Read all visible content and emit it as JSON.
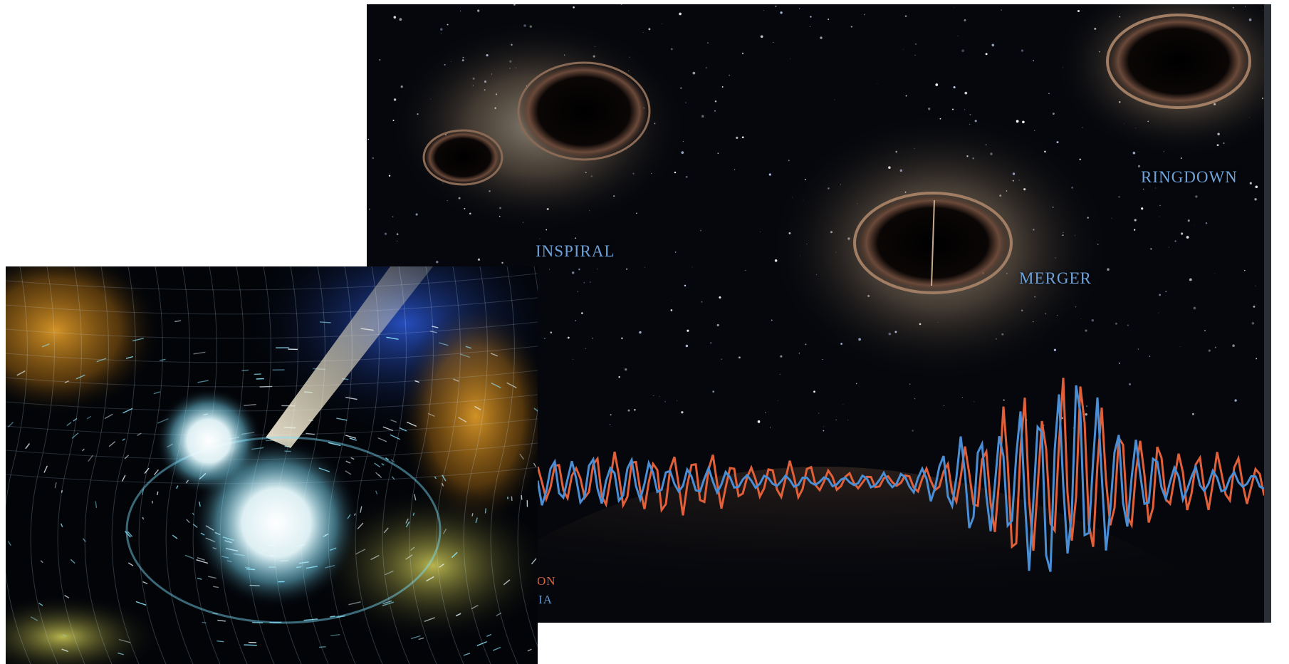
{
  "black_hole_panel": {
    "labels": {
      "inspiral": "INSPIRAL",
      "merger": "MERGER",
      "ringdown": "RINGDOWN"
    },
    "legend_fragments": [
      "ON",
      "IA"
    ],
    "colors": {
      "label_blue": "#6fa3dc",
      "wave_orange": "#e1603a",
      "wave_blue": "#4a8fd6",
      "space": "#05070c"
    }
  },
  "neutron_star_panel": {
    "colors": {
      "glow_white": "#ffffff",
      "cyan": "#7fe3ff",
      "gold": "#d9a12a",
      "blue": "#1d3fa8"
    }
  }
}
